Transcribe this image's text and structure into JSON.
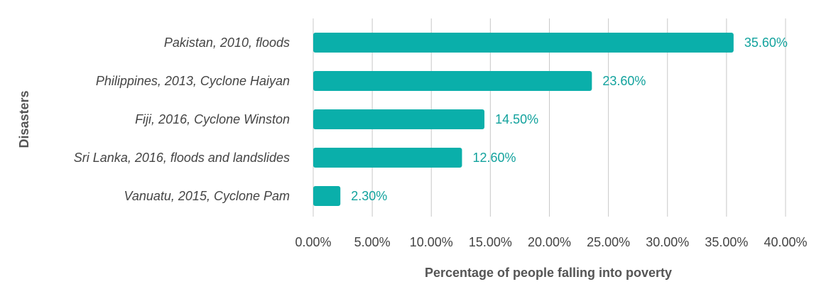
{
  "chart_data": {
    "type": "bar",
    "orientation": "horizontal",
    "categories": [
      "Pakistan, 2010, floods",
      "Philippines, 2013, Cyclone Haiyan",
      "Fiji, 2016, Cyclone Winston",
      "Sri Lanka, 2016, floods and landslides",
      "Vanuatu, 2015, Cyclone Pam"
    ],
    "values": [
      35.6,
      23.6,
      14.5,
      12.6,
      2.3
    ],
    "value_labels": [
      "35.60%",
      "23.60%",
      "14.50%",
      "12.60%",
      "2.30%"
    ],
    "x_ticks": [
      0,
      5,
      10,
      15,
      20,
      25,
      30,
      35,
      40
    ],
    "x_tick_labels": [
      "0.00%",
      "5.00%",
      "10.00%",
      "15.00%",
      "20.00%",
      "25.00%",
      "30.00%",
      "35.00%",
      "40.00%"
    ],
    "xlim": [
      0,
      40
    ],
    "xlabel": "Percentage of people falling into poverty",
    "ylabel": "Disasters",
    "grid": "vertical",
    "legend": "none",
    "colors": {
      "bar": "#0aafaa",
      "value_label": "#12a29d",
      "text": "#444444",
      "grid": "#c8c8c8"
    }
  }
}
